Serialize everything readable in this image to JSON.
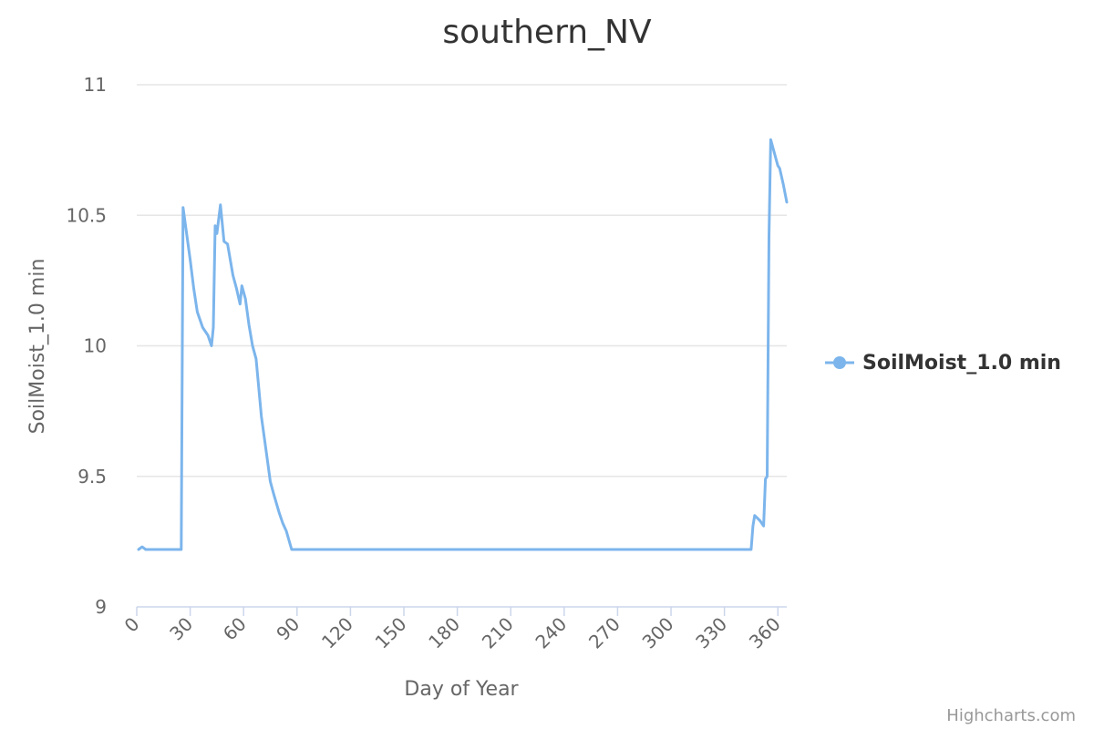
{
  "chart_data": {
    "type": "line",
    "title": "southern_NV",
    "xlabel": "Day of Year",
    "ylabel": "SoilMoist_1.0 min",
    "xlim": [
      0,
      365
    ],
    "ylim": [
      9,
      11
    ],
    "x_ticks": [
      0,
      30,
      60,
      90,
      120,
      150,
      180,
      210,
      240,
      270,
      300,
      330,
      360
    ],
    "y_ticks": [
      9,
      9.5,
      10,
      10.5,
      11
    ],
    "grid": "horizontal",
    "legend": "right",
    "series": [
      {
        "name": "SoilMoist_1.0 min",
        "color": "#7cb5ec",
        "points": [
          [
            1,
            9.22
          ],
          [
            3,
            9.23
          ],
          [
            5,
            9.22
          ],
          [
            10,
            9.22
          ],
          [
            20,
            9.22
          ],
          [
            25,
            9.22
          ],
          [
            26,
            10.53
          ],
          [
            28,
            10.43
          ],
          [
            30,
            10.33
          ],
          [
            32,
            10.22
          ],
          [
            34,
            10.13
          ],
          [
            37,
            10.07
          ],
          [
            40,
            10.04
          ],
          [
            42,
            10.0
          ],
          [
            43,
            10.07
          ],
          [
            44,
            10.46
          ],
          [
            45,
            10.43
          ],
          [
            47,
            10.54
          ],
          [
            49,
            10.4
          ],
          [
            51,
            10.39
          ],
          [
            54,
            10.27
          ],
          [
            56,
            10.22
          ],
          [
            58,
            10.16
          ],
          [
            59,
            10.23
          ],
          [
            61,
            10.18
          ],
          [
            63,
            10.08
          ],
          [
            65,
            10.0
          ],
          [
            67,
            9.95
          ],
          [
            70,
            9.73
          ],
          [
            73,
            9.58
          ],
          [
            75,
            9.48
          ],
          [
            77,
            9.43
          ],
          [
            80,
            9.36
          ],
          [
            82,
            9.32
          ],
          [
            84,
            9.29
          ],
          [
            87,
            9.22
          ],
          [
            100,
            9.22
          ],
          [
            150,
            9.22
          ],
          [
            200,
            9.22
          ],
          [
            250,
            9.22
          ],
          [
            300,
            9.22
          ],
          [
            330,
            9.22
          ],
          [
            345,
            9.22
          ],
          [
            346,
            9.31
          ],
          [
            347,
            9.35
          ],
          [
            350,
            9.33
          ],
          [
            352,
            9.31
          ],
          [
            353,
            9.49
          ],
          [
            354,
            9.5
          ],
          [
            355,
            10.42
          ],
          [
            356,
            10.79
          ],
          [
            358,
            10.74
          ],
          [
            360,
            10.69
          ],
          [
            361,
            10.68
          ],
          [
            363,
            10.62
          ],
          [
            365,
            10.55
          ]
        ]
      }
    ]
  },
  "credits": "Highcharts.com"
}
